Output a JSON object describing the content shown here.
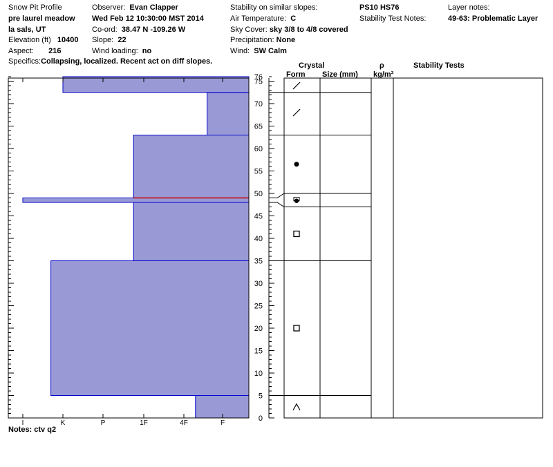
{
  "header": {
    "col1": {
      "title": "Snow Pit Profile",
      "location": "pre laurel meadow",
      "area": "la sals, UT",
      "elevation_label": "Elevation (ft)",
      "elevation_value": "10400",
      "aspect_label": "Aspect:",
      "aspect_value": "216",
      "specifics_label": "Specifics:",
      "specifics_value": "Collapsing, localized. Recent act on diff slopes."
    },
    "col2": {
      "observer_label": "Observer:",
      "observer_value": "Evan Clapper",
      "datetime": "Wed Feb 12 10:30:00 MST 2014",
      "coord_label": "Co-ord:",
      "coord_value": "38.47 N -109.26 W",
      "slope_label": "Slope:",
      "slope_value": "22",
      "wind_loading_label": "Wind loading:",
      "wind_loading_value": "no"
    },
    "col3": {
      "stability_label": "Stability on similar slopes:",
      "air_temp_label": "Air Temperature:",
      "air_temp_value": "C",
      "sky_label": "Sky Cover:",
      "sky_value": "sky 3/8 to 4/8 covered",
      "precip_label": "Precipitation:",
      "precip_value": "None",
      "wind_label": "Wind:",
      "wind_value": "SW Calm"
    },
    "col4": {
      "ps": "PS10 HS76",
      "stability_notes_label": "Stability Test Notes:"
    },
    "col5": {
      "layer_notes_label": "Layer notes:",
      "layer_notes_value": "49-63: Problematic Layer"
    }
  },
  "table_headers": {
    "crystal": "Crystal",
    "form": "Form",
    "size": "Size (mm)",
    "rho": "ρ",
    "rho_unit": "kg/m³",
    "stability_tests": "Stability Tests"
  },
  "notes": "Notes:  ctv q2",
  "colors": {
    "fill": "#9999d6",
    "layer_line": "#0000cc",
    "problem_line": "#cc0000"
  },
  "chart_data": {
    "type": "snow_profile",
    "height_axis": {
      "ticks": [
        0,
        5,
        10,
        15,
        20,
        25,
        30,
        35,
        40,
        45,
        50,
        55,
        60,
        65,
        70,
        75
      ],
      "top_label": "76",
      "range": [
        0,
        76
      ]
    },
    "hardness_axis": {
      "labels": [
        "I",
        "K",
        "P",
        "1F",
        "4F",
        "F"
      ]
    },
    "hardness_layers": [
      {
        "bottom": 0,
        "top": 5,
        "hardness_index": 4.3
      },
      {
        "bottom": 5,
        "top": 35,
        "hardness_index": 0.7
      },
      {
        "bottom": 35,
        "top": 48,
        "hardness_index": 2.75
      },
      {
        "bottom": 48,
        "top": 49,
        "hardness_index": 0.0
      },
      {
        "bottom": 49,
        "top": 63,
        "hardness_index": 2.75
      },
      {
        "bottom": 63,
        "top": 72.5,
        "hardness_index": 4.6
      },
      {
        "bottom": 72.5,
        "top": 76,
        "hardness_index": 1.0
      }
    ],
    "problem_layer_height": 49,
    "layer_boundaries": [
      5,
      35,
      47,
      50,
      63,
      72.5
    ],
    "crystal_symbols": [
      {
        "height": 74,
        "symbol": "slash"
      },
      {
        "height": 68,
        "symbol": "slash"
      },
      {
        "height": 56.5,
        "symbol": "dot"
      },
      {
        "height": 48.5,
        "symbol": "half-dot"
      },
      {
        "height": 41,
        "symbol": "square"
      },
      {
        "height": 20,
        "symbol": "square"
      },
      {
        "height": 2.5,
        "symbol": "caret"
      }
    ]
  }
}
